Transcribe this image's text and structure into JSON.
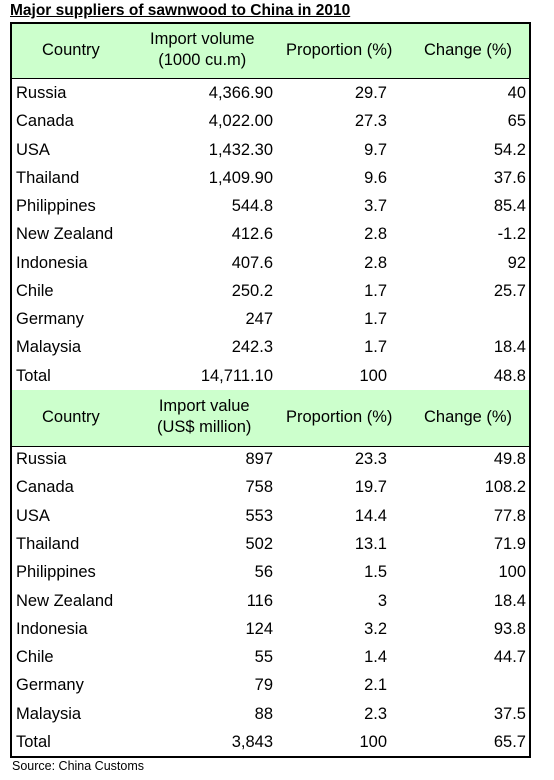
{
  "title": "Major suppliers of sawnwood to China in 2010",
  "source": "Source: China Customs",
  "volume_table": {
    "headers": [
      "Country",
      "Import volume",
      "(1000 cu.m)",
      "Proportion (%)",
      "Change (%)"
    ],
    "rows": [
      [
        "Russia",
        "4,366.90",
        "29.7",
        "40"
      ],
      [
        "Canada",
        "4,022.00",
        "27.3",
        "65"
      ],
      [
        "USA",
        "1,432.30",
        "9.7",
        "54.2"
      ],
      [
        "Thailand",
        "1,409.90",
        "9.6",
        "37.6"
      ],
      [
        "Philippines",
        "544.8",
        "3.7",
        "85.4"
      ],
      [
        "New Zealand",
        "412.6",
        "2.8",
        "-1.2"
      ],
      [
        "Indonesia",
        "407.6",
        "2.8",
        "92"
      ],
      [
        "Chile",
        "250.2",
        "1.7",
        "25.7"
      ],
      [
        "Germany",
        "247",
        "1.7",
        ""
      ],
      [
        "Malaysia",
        "242.3",
        "1.7",
        "18.4"
      ],
      [
        "Total",
        "14,711.10",
        "100",
        "48.8"
      ]
    ]
  },
  "value_table": {
    "headers": [
      "Country",
      "Import value",
      "(US$ million)",
      "Proportion (%)",
      "Change (%)"
    ],
    "rows": [
      [
        "Russia",
        "897",
        "23.3",
        "49.8"
      ],
      [
        "Canada",
        "758",
        "19.7",
        "108.2"
      ],
      [
        "USA",
        "553",
        "14.4",
        "77.8"
      ],
      [
        "Thailand",
        "502",
        "13.1",
        "71.9"
      ],
      [
        "Philippines",
        "56",
        "1.5",
        "100"
      ],
      [
        "New Zealand",
        "116",
        "3",
        "18.4"
      ],
      [
        "Indonesia",
        "124",
        "3.2",
        "93.8"
      ],
      [
        "Chile",
        "55",
        "1.4",
        "44.7"
      ],
      [
        "Germany",
        "79",
        "2.1",
        ""
      ],
      [
        "Malaysia",
        "88",
        "2.3",
        "37.5"
      ],
      [
        "Total",
        "3,843",
        "100",
        "65.7"
      ]
    ]
  }
}
